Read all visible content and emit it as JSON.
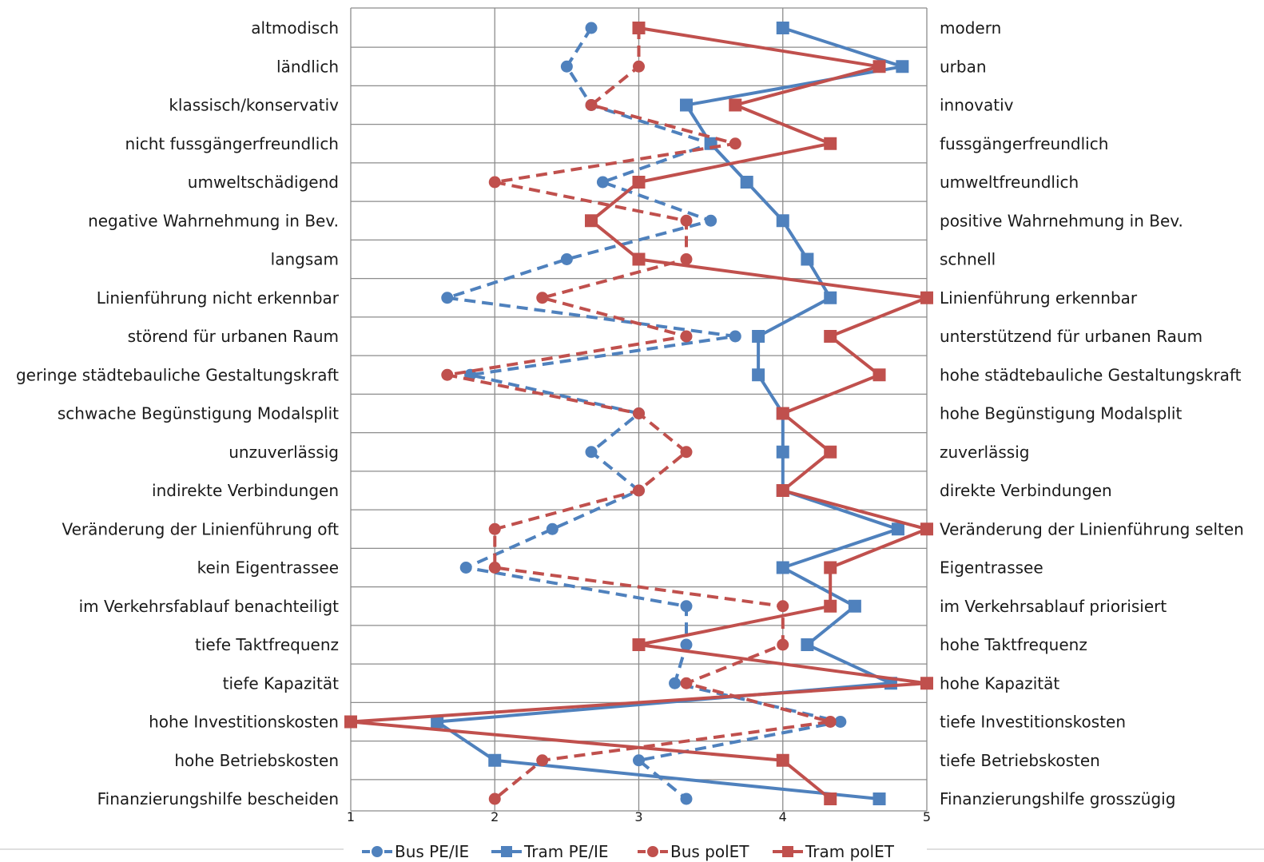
{
  "chart_data": {
    "type": "line",
    "orientation": "vertical-profile",
    "x_ticks": [
      "1",
      "2",
      "3",
      "4",
      "5"
    ],
    "xlim": [
      1,
      5
    ],
    "grid": true,
    "legend_position": "bottom",
    "left_labels": [
      "altmodisch",
      "ländlich",
      "klassisch/konservativ",
      "nicht fussgängerfreundlich",
      "umweltschädigend",
      "negative Wahrnehmung in Bev.",
      "langsam",
      "Linienführung nicht erkennbar",
      "störend für urbanen Raum",
      "geringe städtebauliche Gestaltungskraft",
      "schwache Begünstigung Modalsplit",
      "unzuverlässig",
      "indirekte Verbindungen",
      "Veränderung der Linienführung oft",
      "kein Eigentrassee",
      "im Verkehrsfablauf benachteiligt",
      "tiefe Taktfrequenz",
      "tiefe Kapazität",
      "hohe Investitionskosten",
      "hohe Betriebskosten",
      "Finanzierungshilfe bescheiden"
    ],
    "right_labels": [
      "modern",
      "urban",
      "innovativ",
      "fussgängerfreundlich",
      "umweltfreundlich",
      "positive Wahrnehmung in Bev.",
      "schnell",
      "Linienführung erkennbar",
      "unterstützend für urbanen Raum",
      "hohe städtebauliche Gestaltungskraft",
      "hohe Begünstigung Modalsplit",
      "zuverlässig",
      "direkte Verbindungen",
      "Veränderung der Linienführung selten",
      "Eigentrassee",
      "im Verkehrsablauf priorisiert",
      "hohe Taktfrequenz",
      "hohe Kapazität",
      "tiefe Investitionskosten",
      "tiefe Betriebskosten",
      "Finanzierungshilfe grosszügig"
    ],
    "series": [
      {
        "name": "Bus PE/IE",
        "color": "#4f81bd",
        "dashed": true,
        "marker": "circle",
        "values": [
          2.67,
          2.5,
          2.67,
          3.5,
          2.75,
          3.5,
          2.5,
          1.67,
          3.67,
          1.83,
          3.0,
          2.67,
          3.0,
          2.4,
          1.8,
          3.33,
          3.33,
          3.25,
          4.4,
          3.0,
          3.33
        ]
      },
      {
        "name": "Tram PE/IE",
        "color": "#4f81bd",
        "dashed": false,
        "marker": "square",
        "values": [
          4.0,
          4.83,
          3.33,
          3.5,
          3.75,
          4.0,
          4.17,
          4.33,
          3.83,
          3.83,
          4.0,
          4.0,
          4.0,
          4.8,
          4.0,
          4.5,
          4.17,
          4.75,
          1.6,
          2.0,
          4.67
        ]
      },
      {
        "name": "Bus polET",
        "color": "#c0504d",
        "dashed": true,
        "marker": "circle",
        "values": [
          3.0,
          3.0,
          2.67,
          3.67,
          2.0,
          3.33,
          3.33,
          2.33,
          3.33,
          1.67,
          3.0,
          3.33,
          3.0,
          2.0,
          2.0,
          4.0,
          4.0,
          3.33,
          4.33,
          2.33,
          2.0
        ]
      },
      {
        "name": "Tram polET",
        "color": "#c0504d",
        "dashed": false,
        "marker": "square",
        "values": [
          3.0,
          4.67,
          3.67,
          4.33,
          3.0,
          2.67,
          3.0,
          5.0,
          4.33,
          4.67,
          4.0,
          4.33,
          4.0,
          5.0,
          4.33,
          4.33,
          3.0,
          5.0,
          1.0,
          4.0,
          4.33
        ]
      }
    ]
  }
}
